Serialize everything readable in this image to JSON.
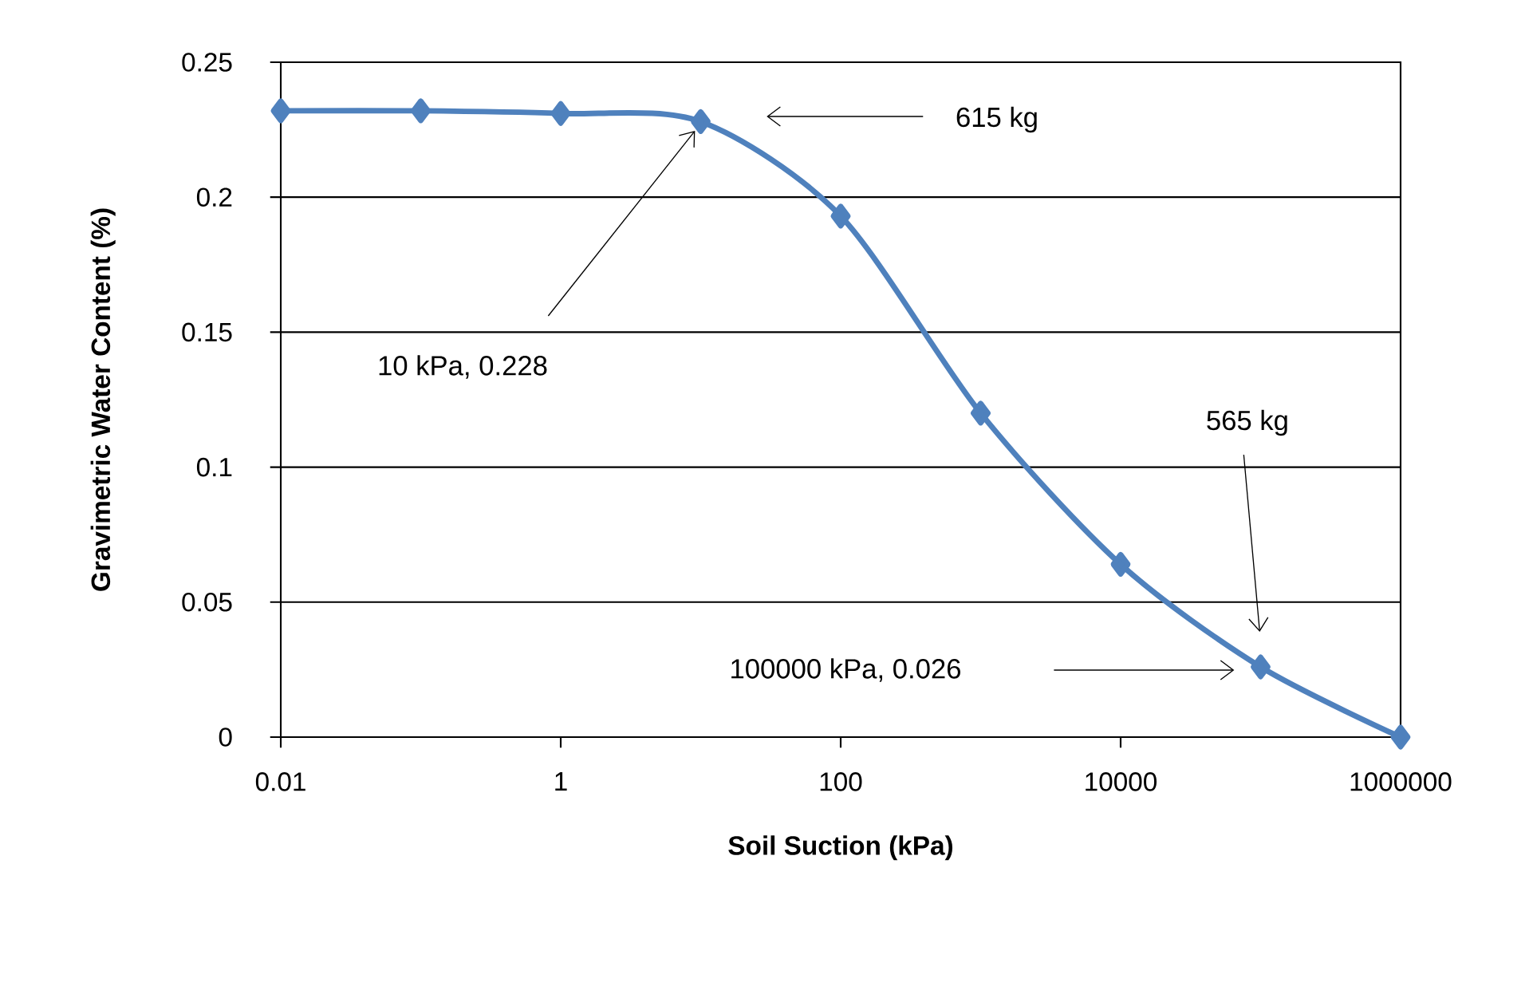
{
  "chart_data": {
    "type": "line",
    "xlabel": "Soil Suction (kPa)",
    "ylabel": "Gravimetric Water Content (%)",
    "x": [
      0.01,
      0.1,
      1,
      10,
      100,
      1000,
      10000,
      100000,
      1000000
    ],
    "series": [
      {
        "color": "#4f81bd",
        "values": [
          0.232,
          0.232,
          0.231,
          0.228,
          0.193,
          0.12,
          0.064,
          0.026,
          0
        ]
      }
    ],
    "xlim": [
      0.01,
      1000000
    ],
    "ylim": [
      0,
      0.25
    ],
    "xticks": [
      0.01,
      1,
      100,
      10000,
      1000000
    ],
    "yticks": [
      0,
      0.05,
      0.1,
      0.15,
      0.2,
      0.25
    ],
    "log": "x",
    "grid": "y",
    "marker": "diamond",
    "line_style": "solid",
    "annotations": [
      "615 kg",
      "10 kPa, 0.228",
      "565 kg",
      "100000 kPa, 0.026"
    ]
  }
}
